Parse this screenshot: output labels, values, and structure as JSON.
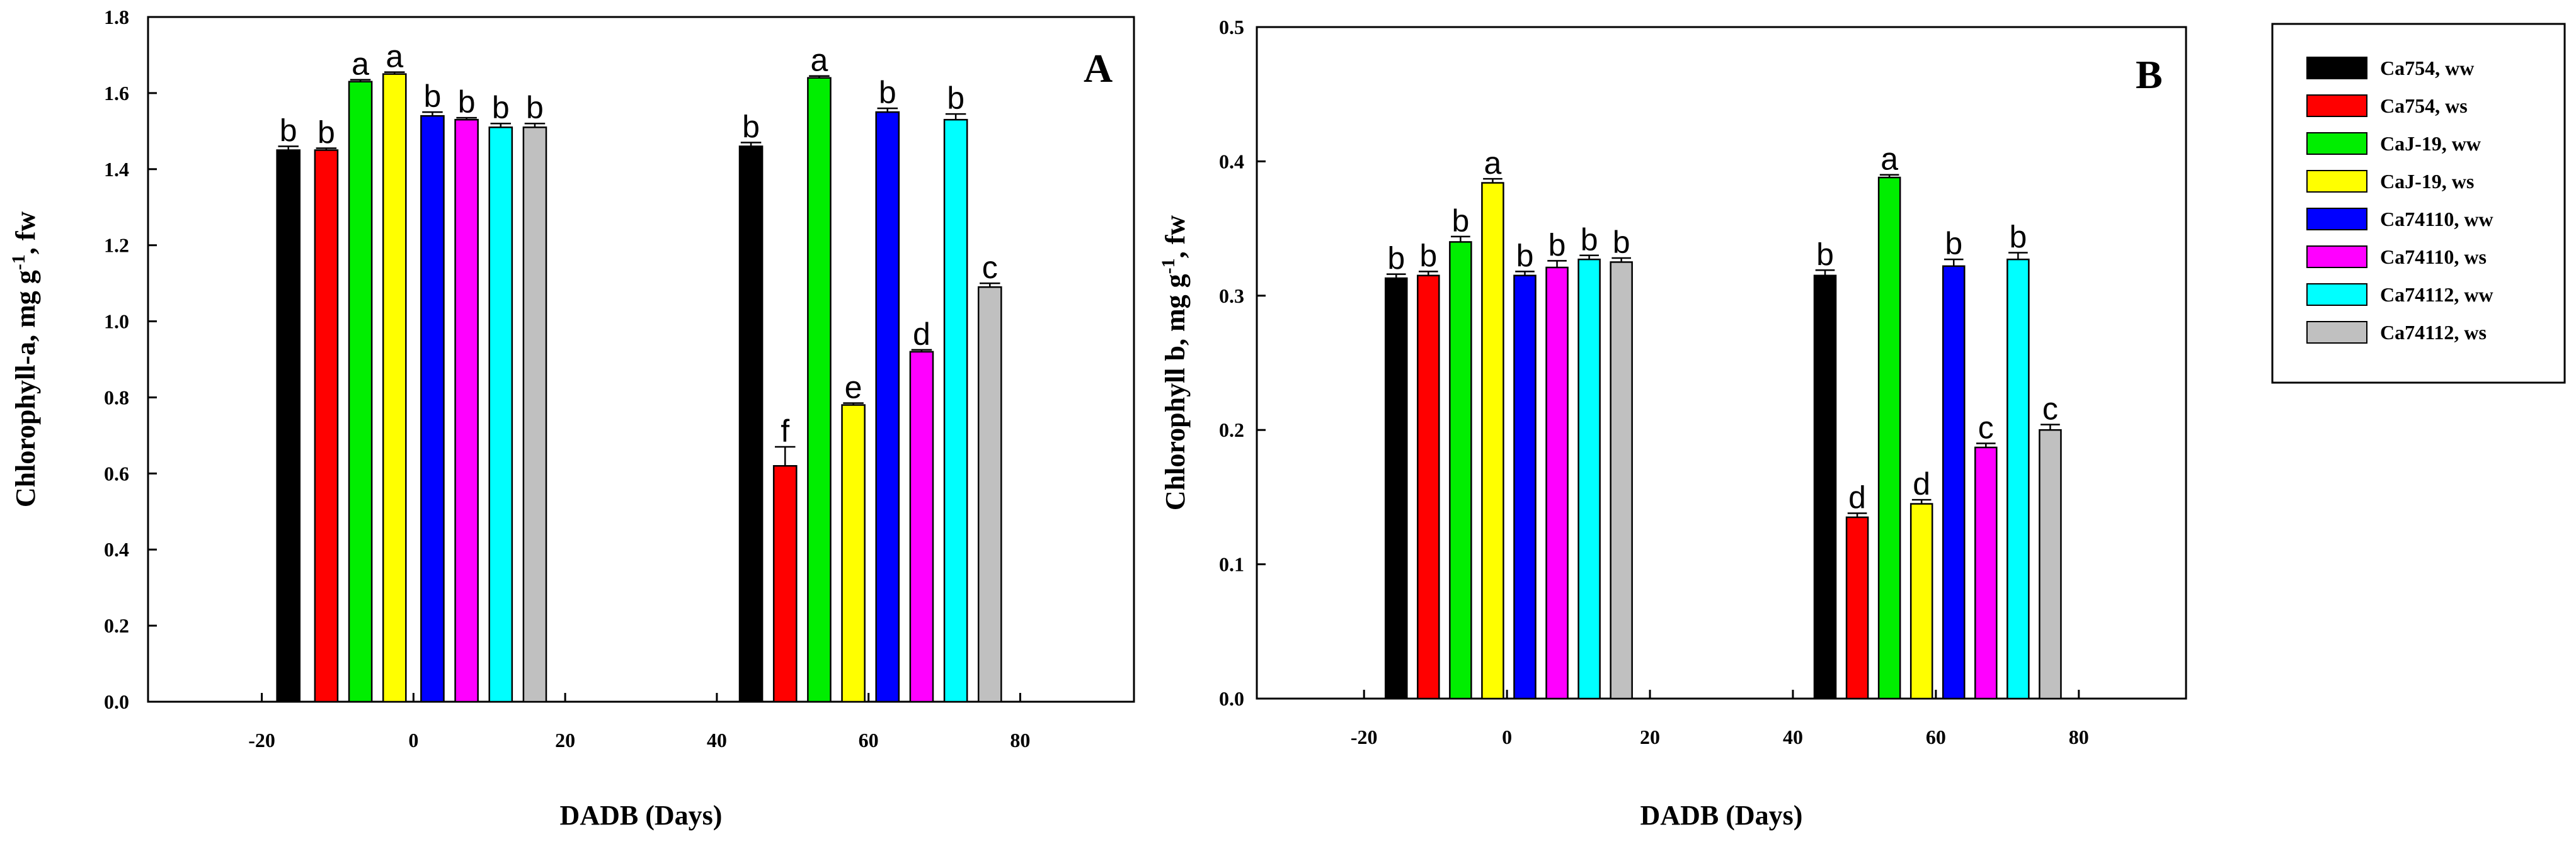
{
  "legend": {
    "entries": [
      {
        "label": "Ca754, ww",
        "color": "#000000"
      },
      {
        "label": "Ca754, ws",
        "color": "#ff0000"
      },
      {
        "label": "CaJ-19, ww",
        "color": "#00ee00"
      },
      {
        "label": "CaJ-19, ws",
        "color": "#ffff00"
      },
      {
        "label": "Ca74110, ww",
        "color": "#0000ff"
      },
      {
        "label": "Ca74110, ws",
        "color": "#ff00ff"
      },
      {
        "label": "Ca74112, ww",
        "color": "#00ffff"
      },
      {
        "label": "Ca74112, ws",
        "color": "#c0c0c0"
      }
    ]
  },
  "chart_data": [
    {
      "type": "bar",
      "panel_letter": "A",
      "title": "",
      "xlabel": "DADB (Days)",
      "ylabel": "Chlorophyll-a, mg g-1, fw",
      "ylabel_parts": {
        "before": "Chlorophyll-a, mg g",
        "sup": "-1",
        "after": ", fw"
      },
      "xlim": [
        -35,
        95
      ],
      "ylim": [
        0,
        1.8
      ],
      "x_ticks": [
        -20,
        0,
        20,
        40,
        60,
        80
      ],
      "y_ticks": [
        0.0,
        0.2,
        0.4,
        0.6,
        0.8,
        1.0,
        1.2,
        1.4,
        1.6,
        1.8
      ],
      "y_tick_labels": [
        "0.0",
        "0.2",
        "0.4",
        "0.6",
        "0.8",
        "1.0",
        "1.2",
        "1.4",
        "1.6",
        "1.8"
      ],
      "bar_width_days": 3,
      "series": [
        {
          "name": "Ca754, ww",
          "x": [
            -16.5,
            44.5
          ],
          "values": [
            1.45,
            1.46
          ],
          "errors": [
            0.01,
            0.01
          ],
          "letters": [
            "b",
            "b"
          ]
        },
        {
          "name": "Ca754, ws",
          "x": [
            -11.5,
            49.0
          ],
          "values": [
            1.45,
            0.62
          ],
          "errors": [
            0.005,
            0.05
          ],
          "letters": [
            "b",
            "f"
          ]
        },
        {
          "name": "CaJ-19, ww",
          "x": [
            -7.0,
            53.5
          ],
          "values": [
            1.63,
            1.64
          ],
          "errors": [
            0.005,
            0.005
          ],
          "letters": [
            "a",
            "a"
          ]
        },
        {
          "name": "CaJ-19, ws",
          "x": [
            -2.5,
            58.0
          ],
          "values": [
            1.65,
            0.78
          ],
          "errors": [
            0.005,
            0.005
          ],
          "letters": [
            "a",
            "e"
          ]
        },
        {
          "name": "Ca74110, ww",
          "x": [
            2.5,
            62.5
          ],
          "values": [
            1.54,
            1.55
          ],
          "errors": [
            0.01,
            0.01
          ],
          "letters": [
            "b",
            "b"
          ]
        },
        {
          "name": "Ca74110, ws",
          "x": [
            7.0,
            67.0
          ],
          "values": [
            1.53,
            0.92
          ],
          "errors": [
            0.005,
            0.005
          ],
          "letters": [
            "b",
            "d"
          ]
        },
        {
          "name": "Ca74112, ww",
          "x": [
            11.5,
            71.5
          ],
          "values": [
            1.51,
            1.53
          ],
          "errors": [
            0.01,
            0.015
          ],
          "letters": [
            "b",
            "b"
          ]
        },
        {
          "name": "Ca74112, ws",
          "x": [
            16.0,
            76.0
          ],
          "values": [
            1.51,
            1.09
          ],
          "errors": [
            0.01,
            0.01
          ],
          "letters": [
            "b",
            "c"
          ]
        }
      ]
    },
    {
      "type": "bar",
      "panel_letter": "B",
      "title": "",
      "xlabel": "DADB (Days)",
      "ylabel": "Chlorophyll b, mg g-1, fw",
      "ylabel_parts": {
        "before": "Chlorophyll b, mg g",
        "sup": "-1",
        "after": ", fw"
      },
      "xlim": [
        -35,
        95
      ],
      "ylim": [
        0,
        0.5
      ],
      "x_ticks": [
        -20,
        0,
        20,
        40,
        60,
        80
      ],
      "y_ticks": [
        0.0,
        0.1,
        0.2,
        0.3,
        0.4,
        0.5
      ],
      "y_tick_labels": [
        "0.0",
        "0.1",
        "0.2",
        "0.3",
        "0.4",
        "0.5"
      ],
      "bar_width_days": 3,
      "series": [
        {
          "name": "Ca754, ww",
          "x": [
            -15.5,
            44.5
          ],
          "values": [
            0.313,
            0.315
          ],
          "errors": [
            0.003,
            0.004
          ],
          "letters": [
            "b",
            "b"
          ]
        },
        {
          "name": "Ca754, ws",
          "x": [
            -11.0,
            49.0
          ],
          "values": [
            0.315,
            0.135
          ],
          "errors": [
            0.003,
            0.003
          ],
          "letters": [
            "b",
            "d"
          ]
        },
        {
          "name": "CaJ-19, ww",
          "x": [
            -6.5,
            53.5
          ],
          "values": [
            0.34,
            0.388
          ],
          "errors": [
            0.004,
            0.002
          ],
          "letters": [
            "b",
            "a"
          ]
        },
        {
          "name": "CaJ-19, ws",
          "x": [
            -2.0,
            58.0
          ],
          "values": [
            0.384,
            0.145
          ],
          "errors": [
            0.003,
            0.003
          ],
          "letters": [
            "a",
            "d"
          ]
        },
        {
          "name": "Ca74110, ww",
          "x": [
            2.5,
            62.5
          ],
          "values": [
            0.315,
            0.322
          ],
          "errors": [
            0.003,
            0.005
          ],
          "letters": [
            "b",
            "b"
          ]
        },
        {
          "name": "Ca74110, ws",
          "x": [
            7.0,
            67.0
          ],
          "values": [
            0.321,
            0.187
          ],
          "errors": [
            0.005,
            0.003
          ],
          "letters": [
            "b",
            "c"
          ]
        },
        {
          "name": "Ca74112, ww",
          "x": [
            11.5,
            71.5
          ],
          "values": [
            0.327,
            0.327
          ],
          "errors": [
            0.003,
            0.005
          ],
          "letters": [
            "b",
            "b"
          ]
        },
        {
          "name": "Ca74112, ws",
          "x": [
            16.0,
            76.0
          ],
          "values": [
            0.325,
            0.2
          ],
          "errors": [
            0.003,
            0.004
          ],
          "letters": [
            "b",
            "c"
          ]
        }
      ]
    }
  ]
}
